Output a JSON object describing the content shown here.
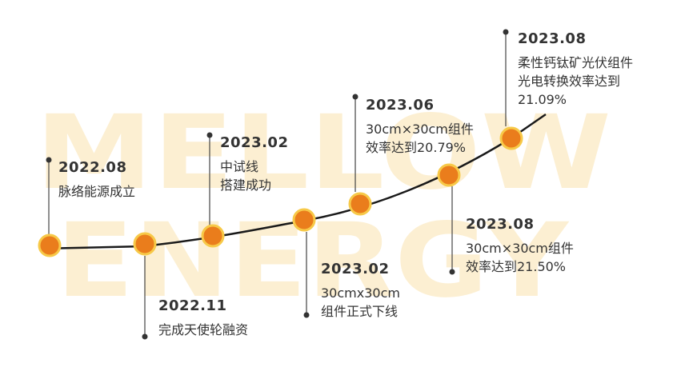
{
  "watermark": {
    "line1": "MELLOW",
    "line2": "ENERGY"
  },
  "colors": {
    "node_fill": "#ea7d1c",
    "node_ring": "#f7c948",
    "line": "#1a1a1a",
    "text": "#333333",
    "watermark": "#fcefd2"
  },
  "milestones": [
    {
      "date": "2022.08",
      "lines": [
        "脉络能源成立"
      ]
    },
    {
      "date": "2022.11",
      "lines": [
        "完成天使轮融资"
      ]
    },
    {
      "date": "2023.02",
      "lines": [
        "中试线",
        "搭建成功"
      ]
    },
    {
      "date": "2023.02",
      "lines": [
        "30cmx30cm",
        "组件正式下线"
      ]
    },
    {
      "date": "2023.06",
      "lines": [
        "30cm×30cm组件",
        "效率达到20.79%"
      ]
    },
    {
      "date": "2023.08",
      "lines": [
        "30cm×30cm组件",
        "效率达到21.50%"
      ]
    },
    {
      "date": "2023.08",
      "lines": [
        "柔性钙钛矿光伏组件",
        "光电转换效率达到",
        "21.09%"
      ]
    }
  ]
}
